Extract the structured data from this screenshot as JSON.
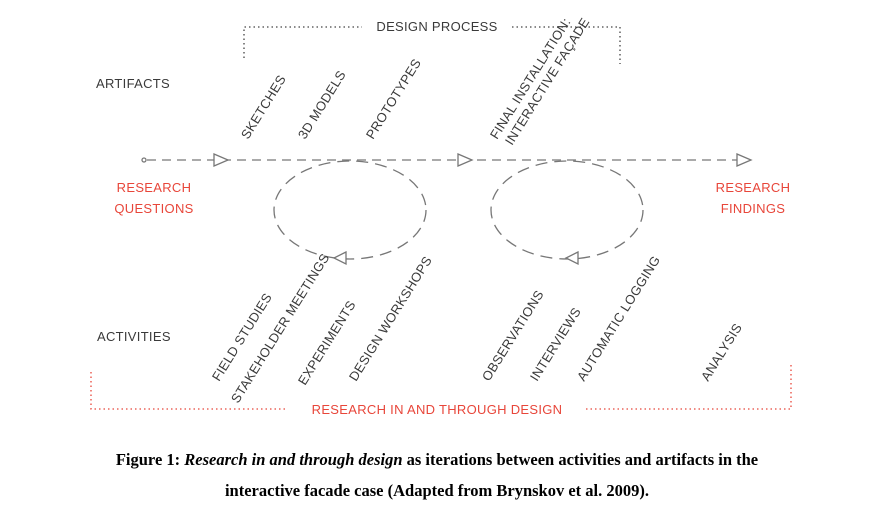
{
  "diagram": {
    "design_process": "DESIGN PROCESS",
    "artifacts_label": "ARTIFACTS",
    "activities_label": "ACTIVITIES",
    "research_questions": [
      "RESEARCH",
      "QUESTIONS"
    ],
    "research_findings": [
      "RESEARCH",
      "FINDINGS"
    ],
    "research_through_design": "RESEARCH IN AND THROUGH DESIGN",
    "artifacts": [
      "SKETCHES",
      "3D MODELS",
      "PROTOTYPES",
      "FINAL INSTALLATION:",
      "INTERACTIVE FAÇADE"
    ],
    "activities": [
      "FIELD STUDIES",
      "STAKEHOLDER MEETINGS",
      "EXPERIMENTS",
      "DESIGN WORKSHOPS",
      "OBSERVATIONS",
      "INTERVIEWS",
      "AUTOMATIC LOGGING",
      "ANALYSIS"
    ],
    "colors": {
      "accent": "#e8463a",
      "text": "#3a3a3a",
      "line": "#777777"
    }
  },
  "caption": {
    "prefix": "Figure 1: ",
    "italic": "Research in and through design",
    "line1_rest": " as iterations between activities and artifacts in the",
    "line2": "interactive facade case (Adapted from Brynskov et al. 2009)."
  }
}
